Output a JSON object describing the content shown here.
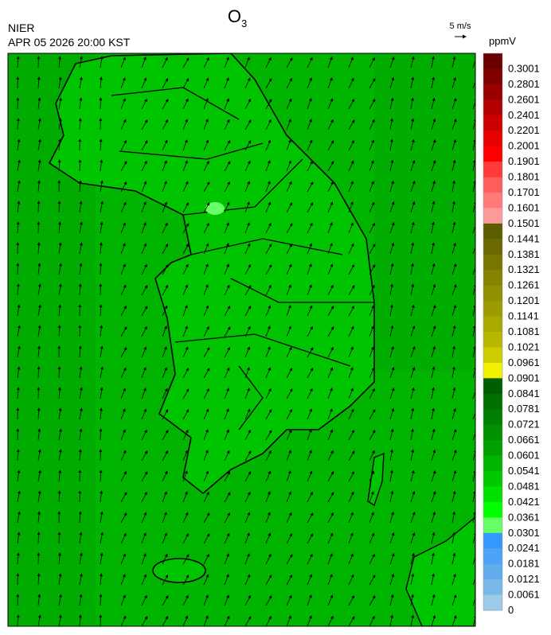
{
  "header": {
    "title": {
      "main": "O",
      "sub": "3"
    },
    "agency": "NIER",
    "datetime": "APR 05 2026 20:00 KST",
    "wind_scale": "5 m/s"
  },
  "colorbar": {
    "unit": "ppmV",
    "labels": [
      "0.3001",
      "0.2801",
      "0.2601",
      "0.2401",
      "0.2201",
      "0.2001",
      "0.1901",
      "0.1801",
      "0.1701",
      "0.1601",
      "0.1501",
      "0.1441",
      "0.1381",
      "0.1321",
      "0.1261",
      "0.1201",
      "0.1141",
      "0.1081",
      "0.1021",
      "0.0961",
      "0.0901",
      "0.0841",
      "0.0781",
      "0.0721",
      "0.0661",
      "0.0601",
      "0.0541",
      "0.0481",
      "0.0421",
      "0.0361",
      "0.0301",
      "0.0241",
      "0.0181",
      "0.0121",
      "0.0061",
      "0"
    ],
    "colors": [
      "#6b0000",
      "#800000",
      "#990000",
      "#b30000",
      "#cc0000",
      "#e60000",
      "#ff0000",
      "#ff3a3a",
      "#ff5c5c",
      "#ff7a7a",
      "#ff9a9a",
      "#5e5e00",
      "#6a6a00",
      "#777700",
      "#848400",
      "#909000",
      "#9c9c00",
      "#a9a900",
      "#b7b700",
      "#cccc00",
      "#f0f000",
      "#005e00",
      "#007000",
      "#008000",
      "#009000",
      "#00a000",
      "#00b400",
      "#00c800",
      "#00e000",
      "#00ff00",
      "#66ff66",
      "#3399ff",
      "#4da3f5",
      "#63adee",
      "#7ab8ea",
      "#9ccbe8"
    ]
  }
}
